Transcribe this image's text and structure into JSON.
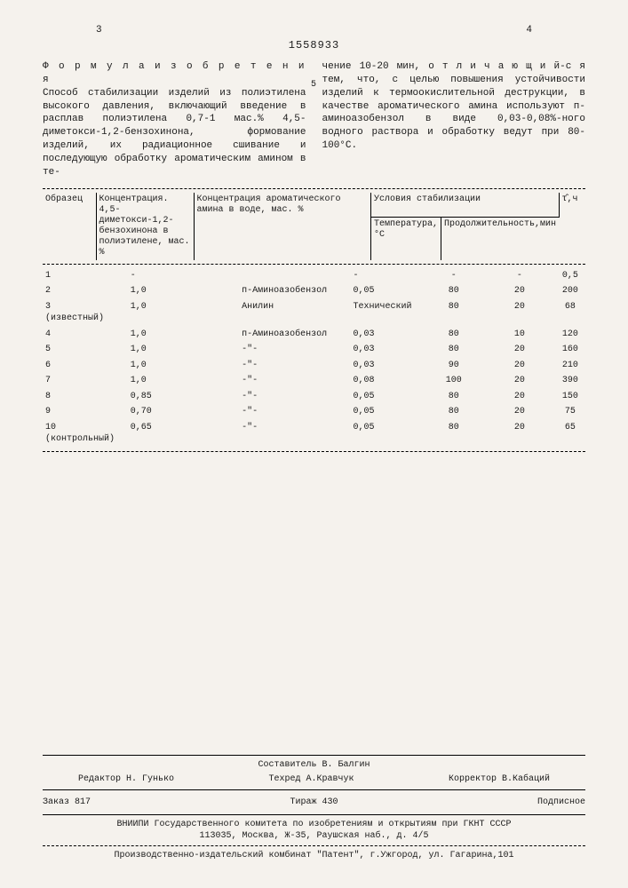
{
  "header": {
    "left_page": "3",
    "right_page": "4",
    "doc_number": "1558933"
  },
  "formula_title": "Ф о р м у л а   и з о б р е т е н и я",
  "left_col_text": "Способ стабилизации изделий из полиэтилена высокого давления, включающий введение в расплав полиэтилена 0,7-1 мас.% 4,5-диметокси-1,2-бензохинона, формование изделий, их радиационное сшивание и последующую обработку ароматическим амином в те-",
  "right_col_text": "чение 10-20 мин, о т л и ч а ю щ и й-с я  тем, что, с целью повышения устойчивости изделий к термоокислительной деструкции, в качестве ароматического амина используют п-аминоазобензол в виде 0,03-0,08%-ного водного раствора и обработку ведут при 80-100°С.",
  "col_marker_5": "5",
  "table": {
    "headers": {
      "col1": "Образец",
      "col2": "Концентрация. 4,5-диметокси-1,2-бензохинона в полиэтилене, мас. %",
      "col3": "Концентрация ароматического амина в воде, мас. %",
      "col4": "Условия стабилизации",
      "col4a": "Температура,°С",
      "col4b": "Продолжительность,мин",
      "col5": "τ̂,ч"
    },
    "rows": [
      {
        "n": "1",
        "c": "-",
        "a": "",
        "p": "-",
        "t": "-",
        "d": "-",
        "tau": "0,5"
      },
      {
        "n": "2",
        "c": "1,0",
        "a": "п-Аминоазобензол",
        "p": "0,05",
        "t": "80",
        "d": "20",
        "tau": "200"
      },
      {
        "n": "3\n(известный)",
        "c": "1,0",
        "a": "Анилин",
        "p": "Технический",
        "t": "80",
        "d": "20",
        "tau": "68"
      },
      {
        "n": "4",
        "c": "1,0",
        "a": "п-Аминоазобензол",
        "p": "0,03",
        "t": "80",
        "d": "10",
        "tau": "120"
      },
      {
        "n": "5",
        "c": "1,0",
        "a": "-\"-",
        "p": "0,03",
        "t": "80",
        "d": "20",
        "tau": "160"
      },
      {
        "n": "6",
        "c": "1,0",
        "a": "-\"-",
        "p": "0,03",
        "t": "90",
        "d": "20",
        "tau": "210"
      },
      {
        "n": "7",
        "c": "1,0",
        "a": "-\"-",
        "p": "0,08",
        "t": "100",
        "d": "20",
        "tau": "390"
      },
      {
        "n": "8",
        "c": "0,85",
        "a": "-\"-",
        "p": "0,05",
        "t": "80",
        "d": "20",
        "tau": "150"
      },
      {
        "n": "9",
        "c": "0,70",
        "a": "-\"-",
        "p": "0,05",
        "t": "80",
        "d": "20",
        "tau": "75"
      },
      {
        "n": "10\n(контрольный)",
        "c": "0,65",
        "a": "-\"-",
        "p": "0,05",
        "t": "80",
        "d": "20",
        "tau": "65"
      }
    ]
  },
  "footer": {
    "compiler": "Составитель В. Балгин",
    "editor": "Редактор Н. Гунько",
    "tech": "Техред А.Кравчук",
    "corrector": "Корректор  В.Кабаций",
    "order": "Заказ 817",
    "tirage": "Тираж 430",
    "subscribe": "Подписное",
    "org1": "ВНИИПИ Государственного комитета по изобретениям и открытиям при ГКНТ СССР",
    "org2": "113035, Москва, Ж-35, Раушская наб., д. 4/5",
    "org3": "Производственно-издательский комбинат \"Патент\", г.Ужгород, ул. Гагарина,101"
  }
}
